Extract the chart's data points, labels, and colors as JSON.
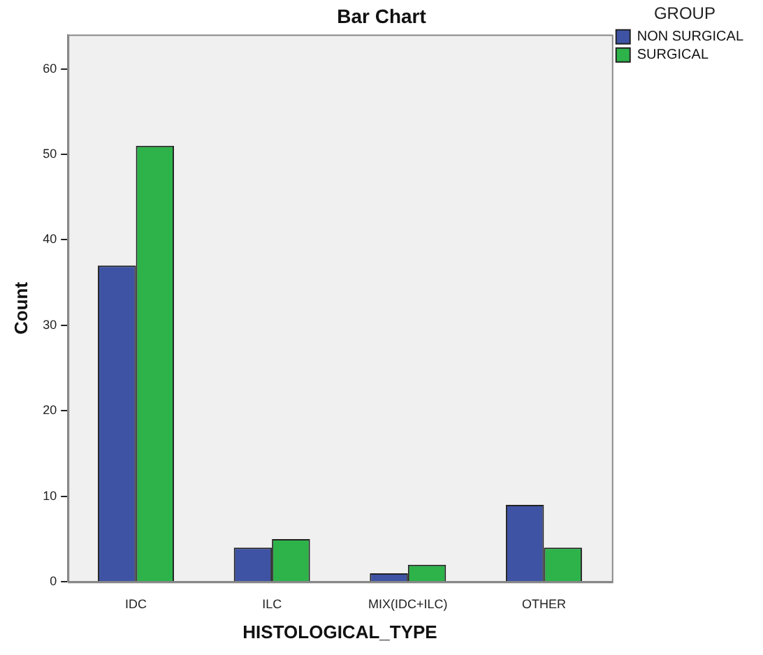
{
  "chart_data": {
    "type": "bar",
    "title": "Bar Chart",
    "xlabel": "HISTOLOGICAL_TYPE",
    "ylabel": "Count",
    "legend_title": "GROUP",
    "categories": [
      "IDC",
      "ILC",
      "MIX(IDC+ILC)",
      "OTHER"
    ],
    "series": [
      {
        "name": "NON SURGICAL",
        "color": "#3e53a4",
        "values": [
          37,
          4,
          1,
          9
        ]
      },
      {
        "name": "SURGICAL",
        "color": "#2db34a",
        "values": [
          51,
          5,
          2,
          4
        ]
      }
    ],
    "ylim": [
      0,
      64
    ],
    "yticks": [
      0,
      10,
      20,
      30,
      40,
      50,
      60
    ],
    "grid": false,
    "legend": "top right"
  }
}
